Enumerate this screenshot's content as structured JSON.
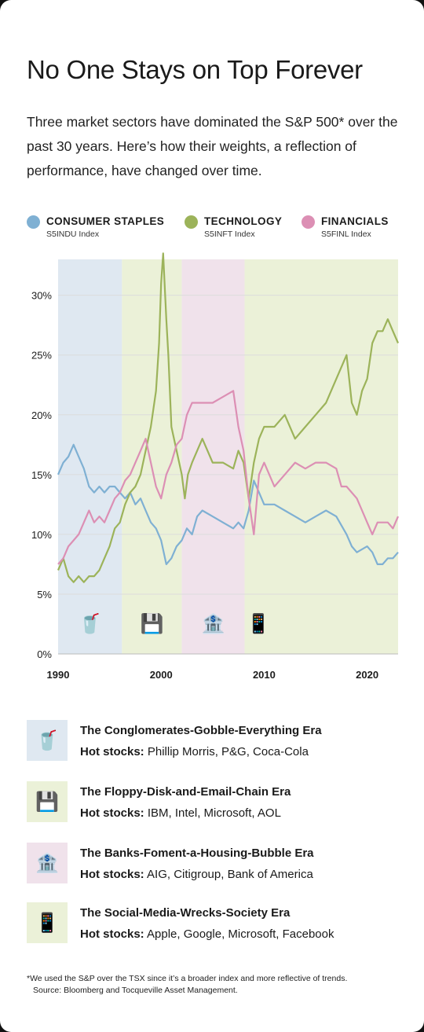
{
  "title": "No One Stays on Top Forever",
  "subtitle": "Three market sectors have dominated the S&P 500* over the past 30 years. Here’s how their weights, a reflection of performance, have changed over time.",
  "legend": [
    {
      "name": "CONSUMER STAPLES",
      "index": "S5INDU Index",
      "color": "#7fb0d3"
    },
    {
      "name": "TECHNOLOGY",
      "index": "S5INFT Index",
      "color": "#9cb35a"
    },
    {
      "name": "FINANCIALS",
      "index": "S5FINL Index",
      "color": "#dc8fb4"
    }
  ],
  "chart_data": {
    "type": "line",
    "xlim": [
      1990,
      2023
    ],
    "ylim": [
      0,
      33
    ],
    "y_ticks": [
      "0%",
      "5%",
      "10%",
      "15%",
      "20%",
      "25%",
      "30%"
    ],
    "x_ticks": [
      "1990",
      "2000",
      "2010",
      "2020"
    ],
    "grid": true,
    "eras": [
      {
        "start": 1990,
        "end": 1996.2,
        "color": "#dfe8f1",
        "icon": "soda-cup-icon",
        "glyph": "🥤"
      },
      {
        "start": 1996.2,
        "end": 2002,
        "color": "#ebf1d8",
        "icon": "floppy-disk-icon",
        "glyph": "💾"
      },
      {
        "start": 2002,
        "end": 2008.1,
        "color": "#f0e2eb",
        "icon": "bank-icon",
        "glyph": "🏦"
      },
      {
        "start": 2008.1,
        "end": 2023,
        "color": "#ebf1d8",
        "icon": "smartphone-icon",
        "glyph": "📱"
      }
    ],
    "series": [
      {
        "name": "CONSUMER STAPLES",
        "color": "#7fb0d3",
        "x": [
          1990,
          1990.5,
          1991,
          1991.5,
          1992,
          1992.5,
          1993,
          1993.5,
          1994,
          1994.5,
          1995,
          1995.5,
          1996,
          1996.5,
          1997,
          1997.5,
          1998,
          1998.5,
          1999,
          1999.5,
          2000,
          2000.5,
          2001,
          2001.5,
          2002,
          2002.5,
          2003,
          2003.5,
          2004,
          2005,
          2006,
          2007,
          2007.5,
          2008,
          2008.5,
          2009,
          2009.5,
          2010,
          2011,
          2012,
          2013,
          2014,
          2015,
          2016,
          2017,
          2018,
          2018.5,
          2019,
          2020,
          2020.5,
          2021,
          2021.5,
          2022,
          2022.5,
          2023
        ],
        "y": [
          15,
          16,
          16.5,
          17.5,
          16.5,
          15.5,
          14,
          13.5,
          14,
          13.5,
          14,
          14,
          13.5,
          13,
          13.5,
          12.5,
          13,
          12,
          11,
          10.5,
          9.5,
          7.5,
          8,
          9,
          9.5,
          10.5,
          10,
          11.5,
          12,
          11.5,
          11,
          10.5,
          11,
          10.5,
          12,
          14.5,
          13.5,
          12.5,
          12.5,
          12,
          11.5,
          11,
          11.5,
          12,
          11.5,
          10,
          9,
          8.5,
          9,
          8.5,
          7.5,
          7.5,
          8,
          8,
          8.5
        ]
      },
      {
        "name": "TECHNOLOGY",
        "color": "#9cb35a",
        "x": [
          1990,
          1990.5,
          1991,
          1991.5,
          1992,
          1992.5,
          1993,
          1993.5,
          1994,
          1994.5,
          1995,
          1995.5,
          1996,
          1996.5,
          1997,
          1997.5,
          1998,
          1998.5,
          1999,
          1999.5,
          1999.8,
          2000,
          2000.2,
          2000.5,
          2000.7,
          2001,
          2001.5,
          2002,
          2002.3,
          2002.6,
          2003,
          2003.5,
          2004,
          2004.5,
          2005,
          2006,
          2007,
          2007.5,
          2008,
          2008.5,
          2009,
          2009.5,
          2010,
          2011,
          2012,
          2013,
          2014,
          2015,
          2016,
          2017,
          2018,
          2018.5,
          2019,
          2019.5,
          2020,
          2020.5,
          2021,
          2021.5,
          2022,
          2022.5,
          2023
        ],
        "y": [
          7,
          8,
          6.5,
          6,
          6.5,
          6,
          6.5,
          6.5,
          7,
          8,
          9,
          10.5,
          11,
          12.5,
          13.5,
          14,
          15,
          17,
          19,
          22,
          26,
          31,
          33.5,
          28,
          25,
          19,
          17,
          15,
          13,
          15,
          16,
          17,
          18,
          17,
          16,
          16,
          15.5,
          17,
          16,
          13,
          16,
          18,
          19,
          19,
          20,
          18,
          19,
          20,
          21,
          23,
          25,
          21,
          20,
          22,
          23,
          26,
          27,
          27,
          28,
          27,
          26
        ]
      },
      {
        "name": "FINANCIALS",
        "color": "#dc8fb4",
        "x": [
          1990,
          1990.5,
          1991,
          1991.5,
          1992,
          1992.5,
          1993,
          1993.5,
          1994,
          1994.5,
          1995,
          1995.5,
          1996,
          1996.5,
          1997,
          1997.5,
          1998,
          1998.5,
          1999,
          1999.5,
          2000,
          2000.5,
          2001,
          2001.5,
          2002,
          2002.5,
          2003,
          2004,
          2005,
          2006,
          2007,
          2007.5,
          2008,
          2008.5,
          2009,
          2009.5,
          2010,
          2011,
          2012,
          2013,
          2014,
          2015,
          2016,
          2017,
          2017.5,
          2018,
          2019,
          2019.5,
          2020,
          2020.5,
          2021,
          2022,
          2022.5,
          2023
        ],
        "y": [
          7.5,
          8,
          9,
          9.5,
          10,
          11,
          12,
          11,
          11.5,
          11,
          12,
          13,
          13.5,
          14.5,
          15,
          16,
          17,
          18,
          16,
          14,
          13,
          15,
          16,
          17.5,
          18,
          20,
          21,
          21,
          21,
          21.5,
          22,
          19,
          17,
          13,
          10,
          15,
          16,
          14,
          15,
          16,
          15.5,
          16,
          16,
          15.5,
          14,
          14,
          13,
          12,
          11,
          10,
          11,
          11,
          10.5,
          11.5
        ]
      }
    ]
  },
  "eras": [
    {
      "icon": "soda-cup-icon",
      "glyph": "🥤",
      "color": "#dfe8f1",
      "title": "The Conglomerates-Gobble-Everything Era",
      "hot_label": "Hot stocks:",
      "stocks": "Phillip Morris, P&G, Coca-Cola"
    },
    {
      "icon": "floppy-disk-icon",
      "glyph": "💾",
      "color": "#ebf1d8",
      "title": "The Floppy-Disk-and-Email-Chain Era",
      "hot_label": "Hot stocks:",
      "stocks": "IBM, Intel, Microsoft, AOL"
    },
    {
      "icon": "bank-icon",
      "glyph": "🏦",
      "color": "#f0e2eb",
      "title": "The Banks-Foment-a-Housing-Bubble Era",
      "hot_label": "Hot stocks:",
      "stocks": "AIG, Citigroup, Bank of America"
    },
    {
      "icon": "smartphone-icon",
      "glyph": "📱",
      "color": "#ebf1d8",
      "title": "The Social-Media-Wrecks-Society Era",
      "hot_label": "Hot stocks:",
      "stocks": "Apple, Google, Microsoft, Facebook"
    }
  ],
  "footnote": {
    "line1": "*We used the S&P over the TSX since it’s a broader index and more reflective of trends.",
    "line2": "Source: Bloomberg and Tocqueville Asset Management."
  }
}
